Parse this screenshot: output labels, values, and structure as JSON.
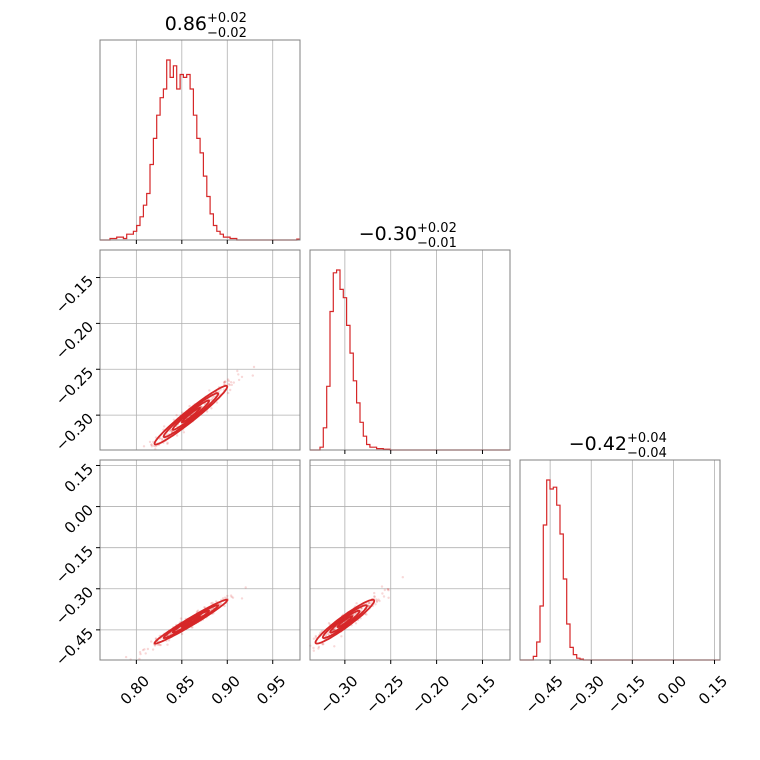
{
  "chart_data": {
    "type": "corner",
    "color": "#d62728",
    "grid": true,
    "parameters": [
      {
        "title_main": "0.86",
        "title_plus": "+0.02",
        "title_minus": "−0.02",
        "median": 0.86,
        "sigma": 0.02,
        "range": [
          0.76,
          0.98
        ],
        "ticks": [
          0.8,
          0.85,
          0.9,
          0.95
        ],
        "tick_labels": [
          "0.80",
          "0.85",
          "0.90",
          "0.95"
        ]
      },
      {
        "title_main": "−0.30",
        "title_plus": "+0.02",
        "title_minus": "−0.01",
        "median": -0.3,
        "sigma": 0.016,
        "range": [
          -0.338,
          -0.12
        ],
        "ticks": [
          -0.3,
          -0.25,
          -0.2,
          -0.15
        ],
        "tick_labels": [
          "−0.30",
          "−0.25",
          "−0.20",
          "−0.15"
        ],
        "y_ticks": [
          -0.15,
          -0.2,
          -0.25,
          -0.3
        ],
        "y_tick_labels": [
          "−0.15",
          "−0.20",
          "−0.25",
          "−0.30"
        ]
      },
      {
        "title_main": "−0.42",
        "title_plus": "+0.04",
        "title_minus": "−0.04",
        "median": -0.42,
        "sigma": 0.04,
        "range": [
          -0.56,
          0.17
        ],
        "ticks": [
          -0.45,
          -0.3,
          -0.15,
          0.0,
          0.15
        ],
        "tick_labels": [
          "−0.45",
          "−0.30",
          "−0.15",
          "0.00",
          "0.15"
        ],
        "y_ticks": [
          0.15,
          0.0,
          -0.15,
          -0.3,
          -0.45
        ],
        "y_tick_labels": [
          "0.15",
          "0.00",
          "−0.15",
          "−0.30",
          "−0.45"
        ]
      }
    ],
    "histograms": [
      {
        "bin_start": 0.76,
        "bin_width": 0.00367,
        "counts": [
          0,
          0,
          0,
          0.5,
          0.5,
          1,
          1,
          0.5,
          2,
          2,
          3,
          5,
          8,
          12,
          16,
          26,
          35,
          43,
          49,
          52,
          62,
          56,
          60,
          52,
          57,
          56,
          57,
          52,
          43,
          35,
          30,
          22,
          15,
          9,
          5,
          3,
          2,
          1,
          1,
          0.5,
          0.5,
          0,
          0,
          0,
          0,
          0,
          0,
          0,
          0,
          0,
          0,
          0,
          0,
          0,
          0,
          0,
          0,
          0,
          0,
          0.3
        ]
      },
      {
        "bin_start": -0.338,
        "bin_width": 0.00363,
        "counts": [
          0,
          0,
          0,
          1,
          8,
          23,
          50,
          64,
          65,
          58,
          55,
          45,
          35,
          25,
          17,
          10,
          5,
          2,
          1,
          1,
          0.5,
          0.5,
          0.3,
          0.3,
          0,
          0,
          0,
          0,
          0,
          0,
          0,
          0,
          0,
          0,
          0,
          0,
          0,
          0,
          0,
          0,
          0,
          0,
          0,
          0,
          0,
          0,
          0,
          0,
          0,
          0,
          0,
          0,
          0,
          0,
          0,
          0,
          0,
          0,
          0,
          0
        ]
      },
      {
        "bin_start": -0.56,
        "bin_width": 0.01217,
        "counts": [
          0,
          0,
          0,
          0,
          2,
          10,
          30,
          75,
          100,
          95,
          96,
          86,
          70,
          45,
          20,
          7,
          3,
          1,
          0.5,
          0,
          0,
          0,
          0,
          0,
          0,
          0,
          0,
          0,
          0,
          0,
          0,
          0,
          0,
          0,
          0,
          0,
          0,
          0,
          0,
          0,
          0,
          0,
          0,
          0,
          0,
          0,
          0,
          0,
          0,
          0,
          0,
          0,
          0,
          0,
          0,
          0,
          0,
          0,
          0,
          0
        ]
      }
    ],
    "correlations": [
      [
        1,
        0.97,
        0.98
      ],
      [
        0.97,
        1,
        0.95
      ],
      [
        0.98,
        0.95,
        1
      ]
    ]
  }
}
